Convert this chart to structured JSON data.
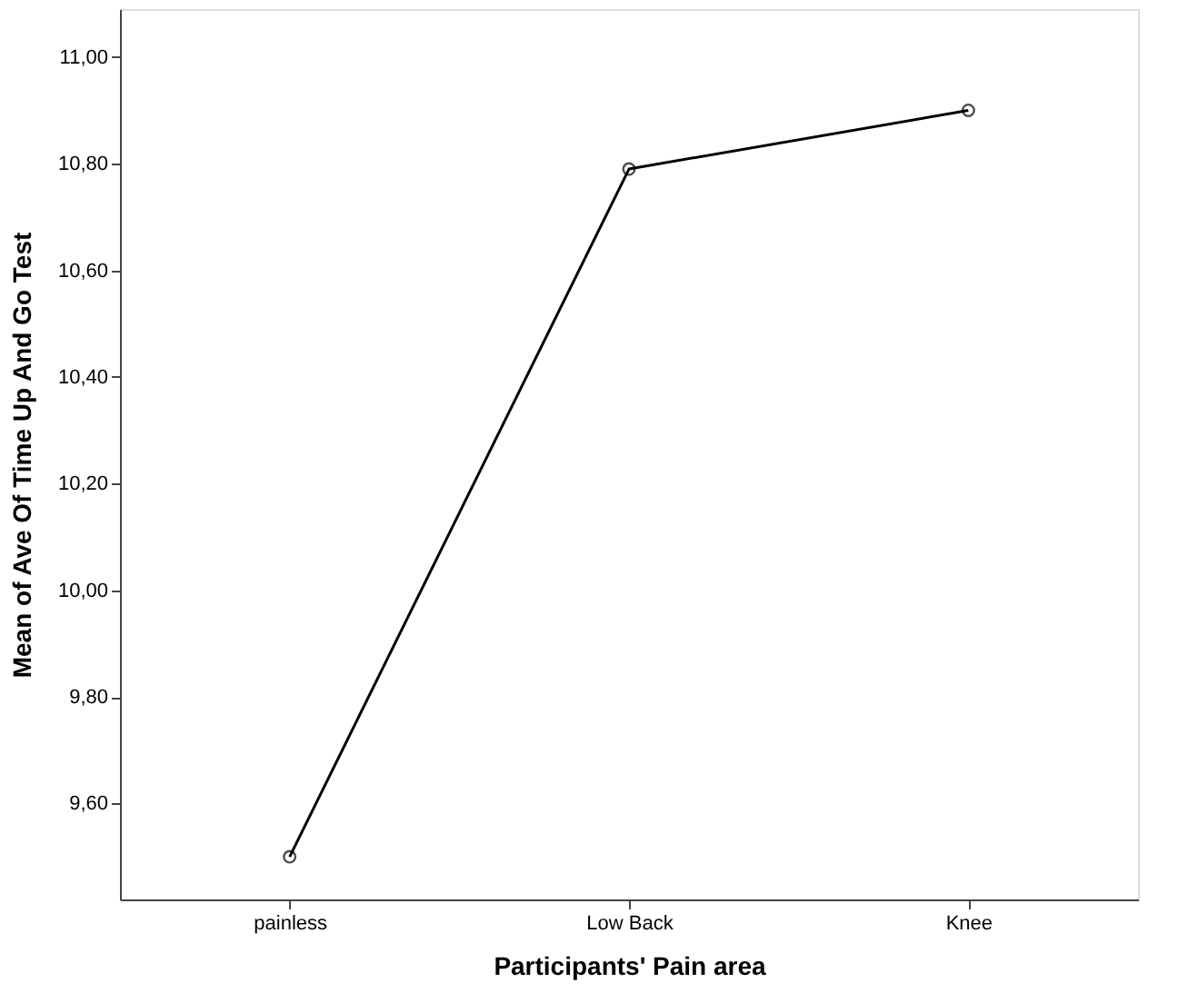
{
  "chart_data": {
    "type": "line",
    "xlabel": "Participants' Pain area",
    "ylabel": "Mean of Ave Of Time Up And Go Test",
    "categories": [
      "painless",
      "Low Back",
      "Knee"
    ],
    "series": [
      {
        "color": "#000000",
        "values": [
          9.5,
          10.79,
          10.9
        ]
      }
    ],
    "ylim": [
      9.42,
      11.09
    ],
    "yticks": [
      {
        "value": 9.6,
        "label": "9,60"
      },
      {
        "value": 9.8,
        "label": "9,80"
      },
      {
        "value": 10.0,
        "label": "10,00"
      },
      {
        "value": 10.2,
        "label": "10,20"
      },
      {
        "value": 10.4,
        "label": "10,40"
      },
      {
        "value": 10.6,
        "label": "10,60"
      },
      {
        "value": 10.8,
        "label": "10,80"
      },
      {
        "value": 11.0,
        "label": "11,00"
      }
    ],
    "marker": "circle",
    "line_style": "solid",
    "grid": false,
    "legend": false
  }
}
